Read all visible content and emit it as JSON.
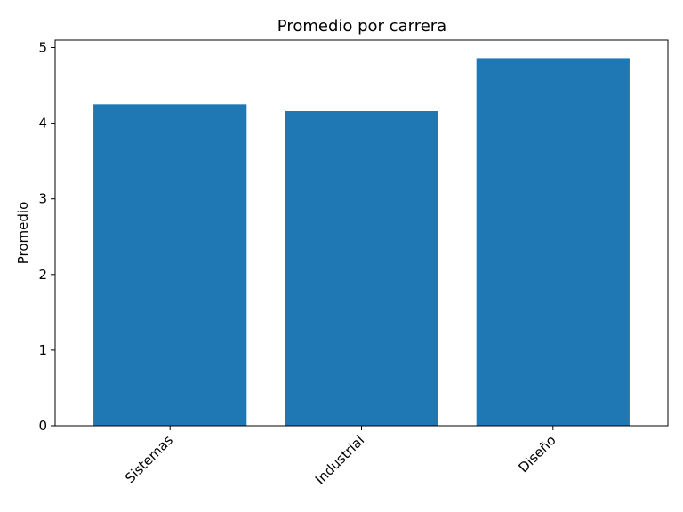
{
  "chart_data": {
    "type": "bar",
    "title": "Promedio por carrera",
    "xlabel": "",
    "ylabel": "Promedio",
    "categories": [
      "Sistemas",
      "Industrial",
      "Diseño"
    ],
    "values": [
      4.25,
      4.16,
      4.86
    ],
    "ylim": [
      0,
      5.1
    ],
    "yticks": [
      0,
      1,
      2,
      3,
      4,
      5
    ],
    "ytick_labels": [
      "0",
      "1",
      "2",
      "3",
      "4",
      "5"
    ],
    "bar_color": "#1f77b4",
    "grid": false,
    "legend": false
  }
}
